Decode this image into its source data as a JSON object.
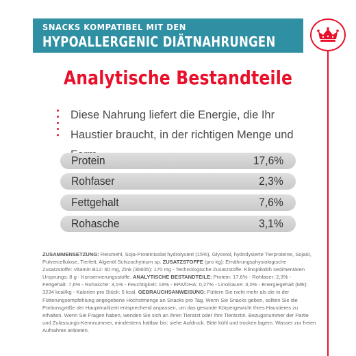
{
  "header": {
    "line1": "SNACKS KOMPATIBEL MIT DEN",
    "line2": "HYPOALLERGENIC DIÄTNAHRUNGEN"
  },
  "logo": {
    "icon": "crown-icon",
    "color": "#e8102a"
  },
  "colors": {
    "accent": "#e8102a",
    "band": "#2f8fa3",
    "row": "#d4d4d4"
  },
  "title": "Analytische Bestandteile",
  "intro": "Diese Nahrung liefert die Energie, die Ihr Haustier braucht, in der richtigen Menge und Form.",
  "rows": [
    {
      "label": "Protein",
      "value": "17,6%"
    },
    {
      "label": "Rohfaser",
      "value": "2,3%"
    },
    {
      "label": "Fettgehalt",
      "value": "7,6%"
    },
    {
      "label": "Rohasche",
      "value": "3,1%"
    }
  ],
  "fine_print": {
    "zusammensetzung_label": "ZUSAMMENSETZUNG:",
    "zusammensetzung_text": " Reismehl, Soja-Proteinisolat hydrolysiert (15%), Glycerol, hydrolysierte Tierproteine, Sojaöl, Pulvercellulose, Tierfett, Algenöl Schizochytrium sp. ",
    "zusatzstoffe_label": "ZUSATZSTOFFE",
    "zusatzstoffe_text": " (pro kg): Ernährungsphysiologische Zusatzstoffe: Vitamin B12: 60 mg, Zink (3b605): 170 mg - Technologische Zusatzstoffe: Klinoptilolith sedimentären Ursprungs: 8 g - Konservierungsstoffe. ",
    "analytische_label": "ANALYTISCHE BESTANDTEILE:",
    "analytische_text": " Protein: 17,6% - Rohfaser: 2,3% - Fettgehalt: 7,6% - Rohasche: 3,1% - Feuchtigkeit: 18% - EPA/DHA: 0,27% - Linolsäure: 3,0% - Energiegehalt (ME): 3234 kcal/kg - Kalorien pro Stück: 5 kcal. ",
    "gebrauch_label": "GEBRAUCHSANWEISUNG:",
    "gebrauch_text": " Füttern Sie nicht mehr als die in der Fütterungsempfehlung angegebene Höchstmenge an Snacks pro Tag. Wenn Sie Snacks geben, sollten Sie die Portionsgröße der Hauptmahlzeit entsprechend anpassen, um das gesunde Körpergewicht Ihres Haustieres zu erhalten. Wenn Sie Fragen haben, wenden Sie sich an Ihren Tierarzt oder Ihre Tierärztin. Bezugsnummer der Partie und Zulassungs-Kennnummer, mindestens haltbar bis: siehe Aufdruck. Bitte kühl und trocken lagern. Wasser zur freien Aufnahme anbieten."
  }
}
